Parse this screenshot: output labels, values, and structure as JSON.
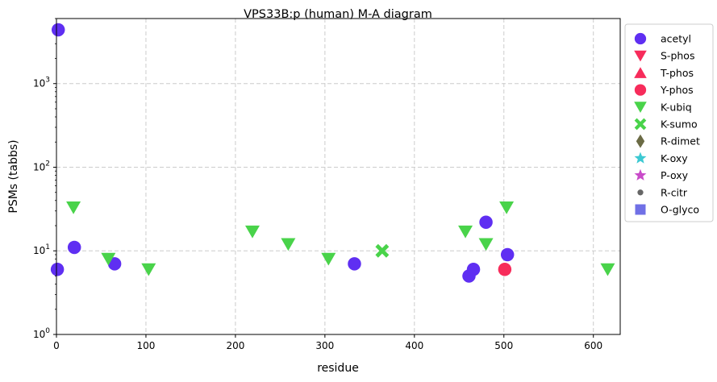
{
  "chart_data": {
    "type": "scatter",
    "title": "VPS33B:p (human) M-A diagram",
    "xlabel": "residue",
    "ylabel": "PSMs (tabbs)",
    "xlim": [
      0,
      630
    ],
    "ylim": [
      1,
      6000
    ],
    "yscale": "log",
    "grid": true,
    "legend_position": "outside-right",
    "x_ticks": [
      0,
      100,
      200,
      300,
      400,
      500,
      600
    ],
    "y_ticks": [
      {
        "value": 1,
        "base": "10",
        "exp": "0"
      },
      {
        "value": 10,
        "base": "10",
        "exp": "1"
      },
      {
        "value": 100,
        "base": "10",
        "exp": "2"
      },
      {
        "value": 1000,
        "base": "10",
        "exp": "3"
      }
    ],
    "series": [
      {
        "name": "acetyl",
        "marker": "circle",
        "color": "#5f2ff2",
        "points": [
          [
            2,
            4400
          ],
          [
            1,
            6
          ],
          [
            20,
            11
          ],
          [
            65,
            7
          ],
          [
            333,
            7
          ],
          [
            461,
            5
          ],
          [
            466,
            6
          ],
          [
            480,
            22
          ],
          [
            504,
            9
          ]
        ]
      },
      {
        "name": "S-phos",
        "marker": "triangle-down",
        "color": "#f72c5b",
        "points": []
      },
      {
        "name": "T-phos",
        "marker": "triangle-up",
        "color": "#f72c5b",
        "points": []
      },
      {
        "name": "Y-phos",
        "marker": "circle",
        "color": "#f72c5b",
        "points": [
          [
            501,
            6
          ]
        ]
      },
      {
        "name": "K-ubiq",
        "marker": "triangle-down",
        "color": "#49d34a",
        "points": [
          [
            19,
            33
          ],
          [
            58,
            8
          ],
          [
            103,
            6
          ],
          [
            219,
            17
          ],
          [
            259,
            12
          ],
          [
            304,
            8
          ],
          [
            457,
            17
          ],
          [
            480,
            12
          ],
          [
            503,
            33
          ],
          [
            616,
            6
          ]
        ]
      },
      {
        "name": "K-sumo",
        "marker": "x",
        "color": "#49d34a",
        "points": [
          [
            364,
            10
          ]
        ]
      },
      {
        "name": "R-dimet",
        "marker": "diamond",
        "color": "#6b6b45",
        "points": []
      },
      {
        "name": "K-oxy",
        "marker": "star",
        "color": "#3cc9d2",
        "points": []
      },
      {
        "name": "P-oxy",
        "marker": "star",
        "color": "#c94bc9",
        "points": []
      },
      {
        "name": "R-citr",
        "marker": "small-circle",
        "color": "#666666",
        "points": []
      },
      {
        "name": "O-glyco",
        "marker": "square",
        "color": "#7070e6",
        "points": []
      }
    ]
  }
}
